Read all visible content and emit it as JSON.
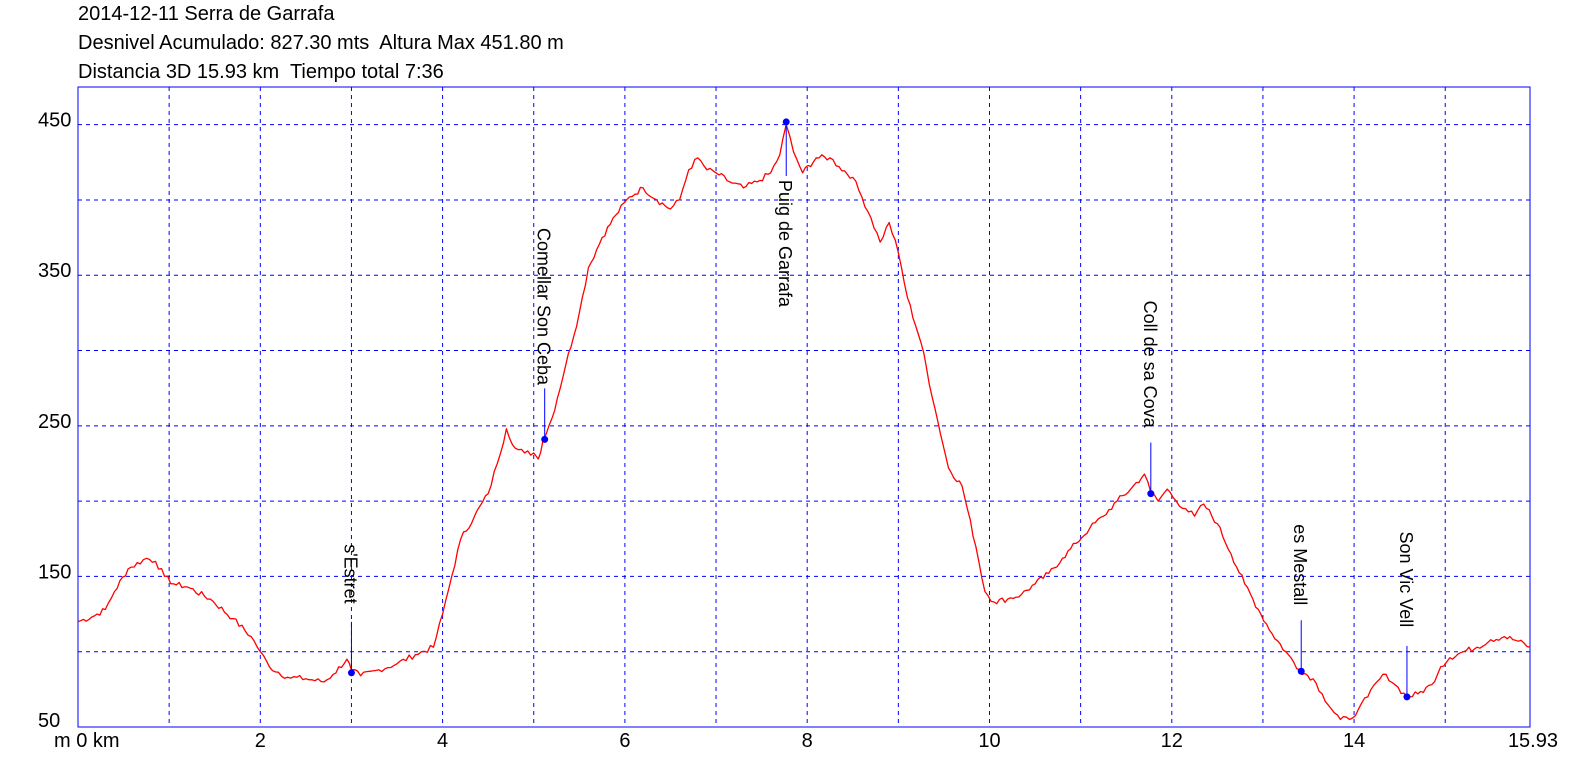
{
  "header": {
    "line1": "2014-12-11 Serra de Garrafa",
    "line2": "Desnivel Acumulado: 827.30 mts  Altura Max 451.80 m",
    "line3": "Distancia 3D 15.93 km  Tiempo total 7:36"
  },
  "chart_data": {
    "type": "line",
    "title": "2014-12-11 Serra de Garrafa",
    "xlabel": "m 0 km",
    "ylabel": "",
    "xlim": [
      0,
      15.93
    ],
    "ylim": [
      50,
      475
    ],
    "x_ticks": [
      {
        "v": 0,
        "label": "m 0 km"
      },
      {
        "v": 2,
        "label": "2"
      },
      {
        "v": 4,
        "label": "4"
      },
      {
        "v": 6,
        "label": "6"
      },
      {
        "v": 8,
        "label": "8"
      },
      {
        "v": 10,
        "label": "10"
      },
      {
        "v": 12,
        "label": "12"
      },
      {
        "v": 14,
        "label": "14"
      },
      {
        "v": 15.93,
        "label": "15.93"
      }
    ],
    "y_ticks": [
      {
        "v": 50,
        "label": "50"
      },
      {
        "v": 150,
        "label": "150"
      },
      {
        "v": 250,
        "label": "250"
      },
      {
        "v": 350,
        "label": "350"
      },
      {
        "v": 450,
        "label": "450"
      }
    ],
    "grid": true,
    "colors": {
      "line": "#ff0000",
      "grid": "#0000ff",
      "frame": "#0000ff",
      "waypoint": "#0000ff"
    },
    "series": [
      {
        "x": [
          0,
          0.15,
          0.3,
          0.4,
          0.55,
          0.75,
          0.85,
          0.95,
          1.05,
          1.2,
          1.45,
          1.7,
          1.9,
          2.0,
          2.1,
          2.3,
          2.5,
          2.7,
          2.8,
          2.95,
          3.0,
          3.1,
          3.3,
          3.5,
          3.7,
          3.9,
          4.0,
          4.1,
          4.2,
          4.35,
          4.5,
          4.6,
          4.7,
          4.8,
          4.9,
          5.0,
          5.05,
          5.1,
          5.2,
          5.35,
          5.5,
          5.6,
          5.75,
          5.9,
          6.05,
          6.2,
          6.35,
          6.5,
          6.6,
          6.7,
          6.8,
          6.9,
          7.0,
          7.15,
          7.3,
          7.45,
          7.6,
          7.7,
          7.77,
          7.85,
          7.95,
          8.1,
          8.25,
          8.35,
          8.5,
          8.6,
          8.7,
          8.8,
          8.9,
          9.0,
          9.1,
          9.25,
          9.4,
          9.55,
          9.7,
          9.85,
          9.95,
          10.05,
          10.2,
          10.35,
          10.5,
          10.65,
          10.8,
          10.95,
          11.1,
          11.25,
          11.4,
          11.55,
          11.7,
          11.77,
          11.85,
          11.95,
          12.05,
          12.15,
          12.25,
          12.35,
          12.5,
          12.65,
          12.8,
          12.95,
          13.1,
          13.25,
          13.4,
          13.55,
          13.65,
          13.75,
          13.85,
          13.95,
          14.05,
          14.15,
          14.25,
          14.35,
          14.45,
          14.58,
          14.7,
          14.85,
          14.95,
          15.05,
          15.2,
          15.35,
          15.5,
          15.65,
          15.8,
          15.93
        ],
        "y": [
          120,
          123,
          128,
          140,
          155,
          162,
          160,
          150,
          145,
          143,
          135,
          122,
          110,
          100,
          90,
          83,
          82,
          80,
          85,
          95,
          88,
          84,
          88,
          92,
          98,
          103,
          125,
          150,
          175,
          190,
          205,
          225,
          248,
          235,
          232,
          232,
          228,
          240,
          255,
          290,
          325,
          355,
          375,
          390,
          402,
          408,
          400,
          394,
          400,
          420,
          428,
          420,
          418,
          412,
          408,
          412,
          418,
          430,
          450,
          432,
          418,
          428,
          428,
          422,
          415,
          402,
          388,
          372,
          385,
          365,
          335,
          305,
          262,
          222,
          210,
          170,
          140,
          133,
          135,
          138,
          145,
          152,
          162,
          172,
          182,
          190,
          200,
          208,
          218,
          206,
          200,
          208,
          200,
          195,
          190,
          198,
          185,
          165,
          145,
          128,
          112,
          100,
          88,
          82,
          72,
          62,
          55,
          55,
          62,
          70,
          80,
          85,
          78,
          70,
          72,
          78,
          90,
          96,
          100,
          103,
          108,
          110,
          107,
          103
        ]
      }
    ],
    "waypoints": [
      {
        "name": "s'Estret",
        "x": 3.0,
        "y": 86
      },
      {
        "name": "Comellar Son Ceba",
        "x": 5.12,
        "y": 241
      },
      {
        "name": "Puig de Garrafa",
        "x": 7.77,
        "y": 451.8
      },
      {
        "name": "Coll de sa Cova",
        "x": 11.77,
        "y": 205
      },
      {
        "name": "es Mestall",
        "x": 13.42,
        "y": 87
      },
      {
        "name": "Son Vic Vell",
        "x": 14.58,
        "y": 70
      }
    ]
  }
}
